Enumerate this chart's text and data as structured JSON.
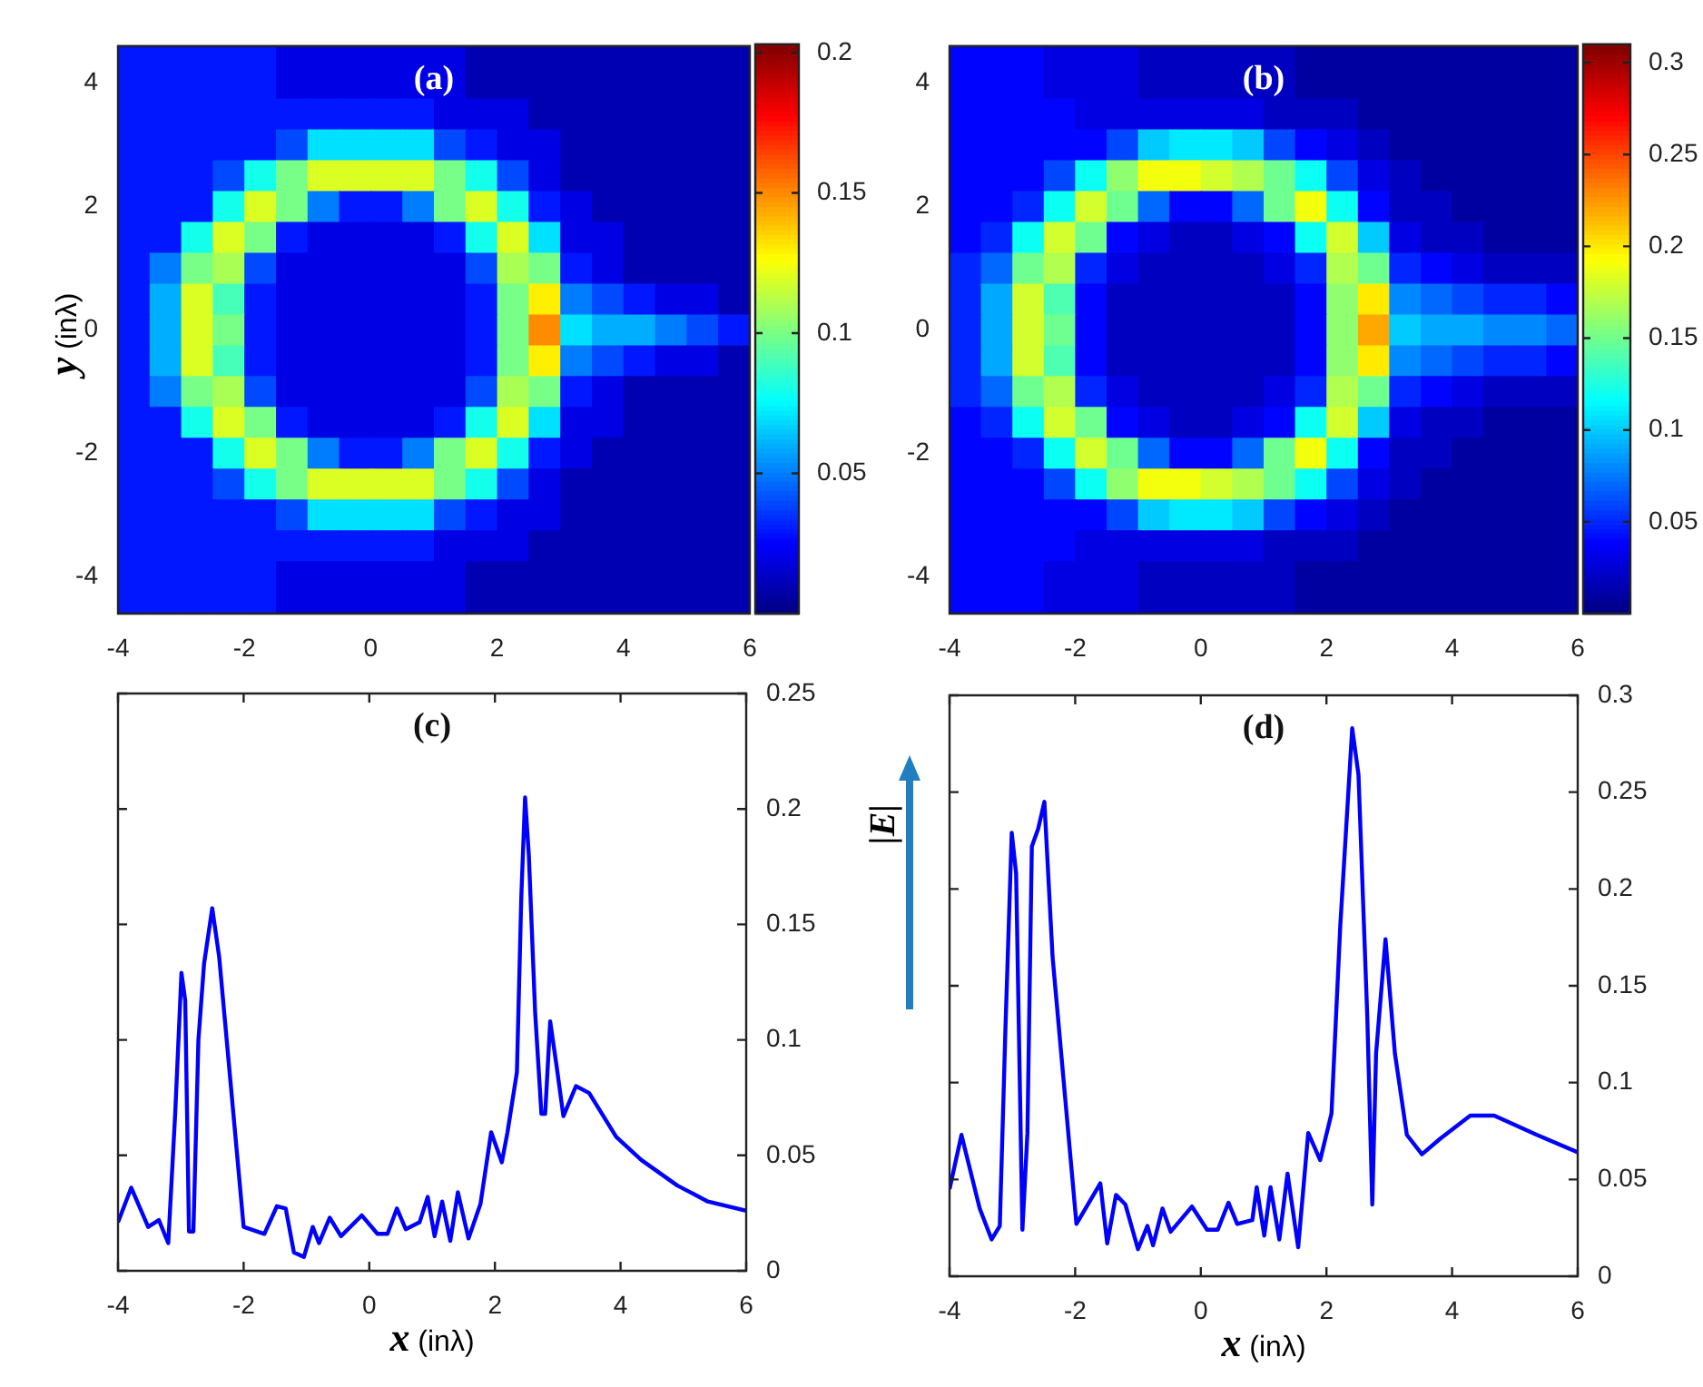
{
  "chart_data": [
    {
      "type": "heatmap",
      "title": "(a)",
      "ylabel": "y (inλ)",
      "xlim": [
        -4,
        6
      ],
      "ylim": [
        -4.6,
        4.6
      ],
      "xticks": [
        -4,
        -2,
        0,
        2,
        4,
        6
      ],
      "yticks": [
        -4,
        -2,
        0,
        2,
        4
      ],
      "clim": [
        0,
        0.203
      ],
      "cticks": [
        0.05,
        0.1,
        0.15,
        0.2
      ],
      "x": [
        -3.75,
        -3.25,
        -2.75,
        -2.25,
        -1.75,
        -1.25,
        -0.75,
        -0.25,
        0.25,
        0.75,
        1.25,
        1.75,
        2.25,
        2.75,
        3.25,
        3.75,
        4.25,
        4.75,
        5.25,
        5.75
      ],
      "y": [
        4.5,
        4,
        3.5,
        3,
        2.5,
        2,
        1.5,
        1,
        0.5,
        0,
        -0.5,
        -1,
        -1.5,
        -2,
        -2.5,
        -3,
        -3.5,
        -4,
        -4.5
      ],
      "cells": [
        [
          0.03,
          0.03,
          0.03,
          0.03,
          0.03,
          0.02,
          0.02,
          0.02,
          0.02,
          0.02,
          0.02,
          0.01,
          0.01,
          0.01,
          0.01,
          0.01,
          0.01,
          0.01,
          0.01,
          0.01
        ],
        [
          0.03,
          0.03,
          0.03,
          0.03,
          0.03,
          0.02,
          0.02,
          0.02,
          0.02,
          0.02,
          0.02,
          0.01,
          0.01,
          0.01,
          0.01,
          0.01,
          0.01,
          0.01,
          0.01,
          0.01
        ],
        [
          0.03,
          0.03,
          0.03,
          0.03,
          0.03,
          0.03,
          0.03,
          0.03,
          0.03,
          0.03,
          0.02,
          0.02,
          0.02,
          0.01,
          0.01,
          0.01,
          0.01,
          0.01,
          0.01,
          0.01
        ],
        [
          0.03,
          0.03,
          0.03,
          0.03,
          0.03,
          0.04,
          0.07,
          0.07,
          0.07,
          0.07,
          0.04,
          0.03,
          0.02,
          0.02,
          0.01,
          0.01,
          0.01,
          0.01,
          0.01,
          0.01
        ],
        [
          0.03,
          0.03,
          0.03,
          0.04,
          0.08,
          0.1,
          0.12,
          0.12,
          0.12,
          0.12,
          0.1,
          0.08,
          0.04,
          0.02,
          0.01,
          0.01,
          0.01,
          0.01,
          0.01,
          0.01
        ],
        [
          0.03,
          0.03,
          0.03,
          0.08,
          0.12,
          0.1,
          0.05,
          0.03,
          0.03,
          0.05,
          0.1,
          0.12,
          0.08,
          0.03,
          0.02,
          0.01,
          0.01,
          0.01,
          0.01,
          0.01
        ],
        [
          0.03,
          0.03,
          0.08,
          0.12,
          0.1,
          0.03,
          0.02,
          0.02,
          0.02,
          0.02,
          0.03,
          0.08,
          0.12,
          0.07,
          0.02,
          0.02,
          0.01,
          0.01,
          0.01,
          0.01
        ],
        [
          0.03,
          0.05,
          0.1,
          0.11,
          0.04,
          0.02,
          0.02,
          0.02,
          0.02,
          0.02,
          0.02,
          0.04,
          0.11,
          0.1,
          0.03,
          0.02,
          0.01,
          0.01,
          0.01,
          0.01
        ],
        [
          0.03,
          0.06,
          0.12,
          0.09,
          0.03,
          0.02,
          0.02,
          0.02,
          0.02,
          0.02,
          0.02,
          0.03,
          0.1,
          0.13,
          0.05,
          0.04,
          0.03,
          0.02,
          0.02,
          0.01
        ],
        [
          0.03,
          0.06,
          0.12,
          0.1,
          0.03,
          0.02,
          0.02,
          0.02,
          0.02,
          0.02,
          0.02,
          0.03,
          0.1,
          0.15,
          0.07,
          0.06,
          0.06,
          0.05,
          0.04,
          0.03
        ],
        [
          0.03,
          0.06,
          0.12,
          0.09,
          0.03,
          0.02,
          0.02,
          0.02,
          0.02,
          0.02,
          0.02,
          0.03,
          0.1,
          0.13,
          0.05,
          0.04,
          0.03,
          0.02,
          0.02,
          0.01
        ],
        [
          0.03,
          0.05,
          0.1,
          0.11,
          0.04,
          0.02,
          0.02,
          0.02,
          0.02,
          0.02,
          0.02,
          0.04,
          0.11,
          0.1,
          0.03,
          0.02,
          0.01,
          0.01,
          0.01,
          0.01
        ],
        [
          0.03,
          0.03,
          0.08,
          0.12,
          0.1,
          0.03,
          0.02,
          0.02,
          0.02,
          0.02,
          0.03,
          0.08,
          0.12,
          0.07,
          0.02,
          0.02,
          0.01,
          0.01,
          0.01,
          0.01
        ],
        [
          0.03,
          0.03,
          0.03,
          0.08,
          0.12,
          0.1,
          0.05,
          0.03,
          0.03,
          0.05,
          0.1,
          0.12,
          0.08,
          0.03,
          0.02,
          0.01,
          0.01,
          0.01,
          0.01,
          0.01
        ],
        [
          0.03,
          0.03,
          0.03,
          0.04,
          0.08,
          0.1,
          0.12,
          0.12,
          0.12,
          0.12,
          0.1,
          0.08,
          0.04,
          0.02,
          0.01,
          0.01,
          0.01,
          0.01,
          0.01,
          0.01
        ],
        [
          0.03,
          0.03,
          0.03,
          0.03,
          0.03,
          0.04,
          0.07,
          0.07,
          0.07,
          0.07,
          0.04,
          0.03,
          0.02,
          0.02,
          0.01,
          0.01,
          0.01,
          0.01,
          0.01,
          0.01
        ],
        [
          0.03,
          0.03,
          0.03,
          0.03,
          0.03,
          0.03,
          0.03,
          0.03,
          0.03,
          0.03,
          0.02,
          0.02,
          0.02,
          0.01,
          0.01,
          0.01,
          0.01,
          0.01,
          0.01,
          0.01
        ],
        [
          0.03,
          0.03,
          0.03,
          0.03,
          0.03,
          0.02,
          0.02,
          0.02,
          0.02,
          0.02,
          0.02,
          0.01,
          0.01,
          0.01,
          0.01,
          0.01,
          0.01,
          0.01,
          0.01,
          0.01
        ],
        [
          0.03,
          0.03,
          0.03,
          0.03,
          0.03,
          0.02,
          0.02,
          0.02,
          0.02,
          0.02,
          0.02,
          0.01,
          0.01,
          0.01,
          0.01,
          0.01,
          0.01,
          0.01,
          0.01,
          0.01
        ]
      ]
    },
    {
      "type": "heatmap",
      "title": "(b)",
      "xlim": [
        -4,
        6
      ],
      "ylim": [
        -4.6,
        4.6
      ],
      "xticks": [
        -4,
        -2,
        0,
        2,
        4,
        6
      ],
      "yticks": [
        -4,
        -2,
        0,
        2,
        4
      ],
      "clim": [
        0,
        0.31
      ],
      "cticks": [
        0.05,
        0.1,
        0.15,
        0.2,
        0.25,
        0.3
      ],
      "x": [
        -3.75,
        -3.25,
        -2.75,
        -2.25,
        -1.75,
        -1.25,
        -0.75,
        -0.25,
        0.25,
        0.75,
        1.25,
        1.75,
        2.25,
        2.75,
        3.25,
        3.75,
        4.25,
        4.75,
        5.25,
        5.75
      ],
      "y": [
        4.5,
        4,
        3.5,
        3,
        2.5,
        2,
        1.5,
        1,
        0.5,
        0,
        -0.5,
        -1,
        -1.5,
        -2,
        -2.5,
        -3,
        -3.5,
        -4,
        -4.5
      ],
      "cells": [
        [
          0.04,
          0.04,
          0.04,
          0.03,
          0.03,
          0.03,
          0.02,
          0.02,
          0.02,
          0.02,
          0.02,
          0.01,
          0.01,
          0.01,
          0.01,
          0.01,
          0.01,
          0.01,
          0.01,
          0.01
        ],
        [
          0.04,
          0.04,
          0.04,
          0.03,
          0.03,
          0.03,
          0.02,
          0.02,
          0.02,
          0.02,
          0.02,
          0.01,
          0.01,
          0.01,
          0.01,
          0.01,
          0.01,
          0.01,
          0.01,
          0.01
        ],
        [
          0.04,
          0.04,
          0.04,
          0.04,
          0.03,
          0.03,
          0.03,
          0.03,
          0.03,
          0.03,
          0.02,
          0.02,
          0.02,
          0.01,
          0.01,
          0.01,
          0.01,
          0.01,
          0.01,
          0.01
        ],
        [
          0.04,
          0.04,
          0.04,
          0.04,
          0.04,
          0.06,
          0.1,
          0.11,
          0.11,
          0.1,
          0.06,
          0.04,
          0.03,
          0.02,
          0.01,
          0.01,
          0.01,
          0.01,
          0.01,
          0.01
        ],
        [
          0.04,
          0.04,
          0.04,
          0.06,
          0.12,
          0.16,
          0.19,
          0.19,
          0.18,
          0.17,
          0.15,
          0.12,
          0.06,
          0.03,
          0.02,
          0.01,
          0.01,
          0.01,
          0.01,
          0.01
        ],
        [
          0.04,
          0.04,
          0.05,
          0.12,
          0.18,
          0.15,
          0.07,
          0.04,
          0.04,
          0.07,
          0.15,
          0.19,
          0.12,
          0.04,
          0.02,
          0.02,
          0.01,
          0.01,
          0.01,
          0.01
        ],
        [
          0.04,
          0.05,
          0.12,
          0.18,
          0.15,
          0.04,
          0.03,
          0.02,
          0.02,
          0.03,
          0.04,
          0.12,
          0.18,
          0.1,
          0.03,
          0.02,
          0.02,
          0.01,
          0.01,
          0.01
        ],
        [
          0.05,
          0.07,
          0.15,
          0.17,
          0.05,
          0.03,
          0.02,
          0.02,
          0.02,
          0.02,
          0.03,
          0.05,
          0.17,
          0.15,
          0.05,
          0.04,
          0.03,
          0.02,
          0.02,
          0.02
        ],
        [
          0.05,
          0.09,
          0.18,
          0.14,
          0.04,
          0.02,
          0.02,
          0.02,
          0.02,
          0.02,
          0.02,
          0.04,
          0.16,
          0.2,
          0.08,
          0.07,
          0.06,
          0.05,
          0.05,
          0.04
        ],
        [
          0.05,
          0.09,
          0.18,
          0.15,
          0.04,
          0.02,
          0.02,
          0.02,
          0.02,
          0.02,
          0.02,
          0.04,
          0.16,
          0.22,
          0.1,
          0.09,
          0.09,
          0.08,
          0.08,
          0.07
        ],
        [
          0.05,
          0.09,
          0.18,
          0.14,
          0.04,
          0.02,
          0.02,
          0.02,
          0.02,
          0.02,
          0.02,
          0.04,
          0.16,
          0.2,
          0.08,
          0.07,
          0.06,
          0.05,
          0.05,
          0.04
        ],
        [
          0.05,
          0.07,
          0.15,
          0.17,
          0.05,
          0.03,
          0.02,
          0.02,
          0.02,
          0.02,
          0.03,
          0.05,
          0.17,
          0.15,
          0.05,
          0.04,
          0.03,
          0.02,
          0.02,
          0.02
        ],
        [
          0.04,
          0.05,
          0.12,
          0.18,
          0.15,
          0.04,
          0.03,
          0.02,
          0.02,
          0.03,
          0.04,
          0.12,
          0.18,
          0.1,
          0.03,
          0.02,
          0.02,
          0.01,
          0.01,
          0.01
        ],
        [
          0.04,
          0.04,
          0.05,
          0.12,
          0.18,
          0.15,
          0.07,
          0.04,
          0.04,
          0.07,
          0.15,
          0.19,
          0.12,
          0.04,
          0.02,
          0.02,
          0.01,
          0.01,
          0.01,
          0.01
        ],
        [
          0.04,
          0.04,
          0.04,
          0.06,
          0.12,
          0.16,
          0.19,
          0.19,
          0.18,
          0.17,
          0.15,
          0.12,
          0.06,
          0.03,
          0.02,
          0.01,
          0.01,
          0.01,
          0.01,
          0.01
        ],
        [
          0.04,
          0.04,
          0.04,
          0.04,
          0.04,
          0.06,
          0.1,
          0.11,
          0.11,
          0.1,
          0.06,
          0.04,
          0.03,
          0.02,
          0.01,
          0.01,
          0.01,
          0.01,
          0.01,
          0.01
        ],
        [
          0.04,
          0.04,
          0.04,
          0.04,
          0.03,
          0.03,
          0.03,
          0.03,
          0.03,
          0.03,
          0.02,
          0.02,
          0.02,
          0.01,
          0.01,
          0.01,
          0.01,
          0.01,
          0.01,
          0.01
        ],
        [
          0.04,
          0.04,
          0.04,
          0.03,
          0.03,
          0.03,
          0.02,
          0.02,
          0.02,
          0.02,
          0.02,
          0.01,
          0.01,
          0.01,
          0.01,
          0.01,
          0.01,
          0.01,
          0.01,
          0.01
        ],
        [
          0.04,
          0.04,
          0.04,
          0.03,
          0.03,
          0.03,
          0.02,
          0.02,
          0.02,
          0.02,
          0.02,
          0.01,
          0.01,
          0.01,
          0.01,
          0.01,
          0.01,
          0.01,
          0.01,
          0.01
        ]
      ]
    },
    {
      "type": "line",
      "title": "(c)",
      "xlabel": "x (inλ)",
      "color": "#0000ff",
      "xlim": [
        -4,
        6
      ],
      "ylim": [
        0,
        0.25
      ],
      "xticks": [
        -4,
        -2,
        0,
        2,
        4,
        6
      ],
      "yticks": [
        0,
        0.05,
        0.1,
        0.15,
        0.2,
        0.25
      ],
      "x": [
        -4,
        -3.79,
        -3.52,
        -3.35,
        -3.2,
        -3.09,
        -2.99,
        -2.93,
        -2.87,
        -2.8,
        -2.72,
        -2.63,
        -2.5,
        -2.39,
        -2,
        -1.67,
        -1.47,
        -1.33,
        -1.2,
        -1.04,
        -0.9,
        -0.8,
        -0.63,
        -0.45,
        -0.12,
        0.13,
        0.29,
        0.44,
        0.58,
        0.8,
        0.93,
        1.04,
        1.16,
        1.29,
        1.41,
        1.58,
        1.77,
        1.94,
        2.11,
        2.2,
        2.35,
        2.42,
        2.48,
        2.54,
        2.64,
        2.74,
        2.8,
        2.88,
        2.98,
        3.09,
        3.29,
        3.5,
        3.93,
        4.33,
        4.9,
        5.39,
        6
      ],
      "values": [
        0.021,
        0.036,
        0.019,
        0.022,
        0.012,
        0.068,
        0.129,
        0.117,
        0.017,
        0.017,
        0.1,
        0.133,
        0.157,
        0.136,
        0.019,
        0.016,
        0.028,
        0.027,
        0.008,
        0.006,
        0.019,
        0.012,
        0.023,
        0.015,
        0.024,
        0.016,
        0.016,
        0.027,
        0.018,
        0.021,
        0.032,
        0.015,
        0.03,
        0.013,
        0.034,
        0.014,
        0.029,
        0.06,
        0.047,
        0.06,
        0.086,
        0.162,
        0.205,
        0.18,
        0.112,
        0.068,
        0.068,
        0.108,
        0.089,
        0.067,
        0.08,
        0.077,
        0.058,
        0.048,
        0.037,
        0.03,
        0.026
      ]
    },
    {
      "type": "line",
      "title": "(d)",
      "xlabel": "x (inλ)",
      "ylabel": "|E|",
      "color": "#0000ff",
      "xlim": [
        -4,
        6
      ],
      "ylim": [
        0,
        0.3
      ],
      "xticks": [
        -4,
        -2,
        0,
        2,
        4,
        6
      ],
      "yticks": [
        0,
        0.05,
        0.1,
        0.15,
        0.2,
        0.25,
        0.3
      ],
      "x": [
        -4,
        -3.81,
        -3.52,
        -3.33,
        -3.2,
        -3.11,
        -3.01,
        -2.94,
        -2.84,
        -2.76,
        -2.69,
        -2.59,
        -2.49,
        -2.36,
        -1.98,
        -1.6,
        -1.49,
        -1.35,
        -1.2,
        -1,
        -0.85,
        -0.76,
        -0.61,
        -0.48,
        -0.14,
        0.1,
        0.27,
        0.44,
        0.58,
        0.82,
        0.89,
        1.01,
        1.11,
        1.25,
        1.38,
        1.55,
        1.71,
        1.9,
        2.08,
        2.22,
        2.41,
        2.51,
        2.65,
        2.73,
        2.79,
        2.94,
        3.09,
        3.28,
        3.52,
        3.81,
        4.29,
        4.67,
        5.35,
        6
      ],
      "values": [
        0.045,
        0.073,
        0.035,
        0.019,
        0.026,
        0.128,
        0.229,
        0.208,
        0.024,
        0.074,
        0.222,
        0.231,
        0.245,
        0.165,
        0.027,
        0.048,
        0.017,
        0.042,
        0.037,
        0.014,
        0.026,
        0.016,
        0.035,
        0.023,
        0.036,
        0.024,
        0.024,
        0.038,
        0.027,
        0.029,
        0.046,
        0.021,
        0.046,
        0.019,
        0.053,
        0.015,
        0.074,
        0.06,
        0.084,
        0.181,
        0.283,
        0.259,
        0.134,
        0.037,
        0.115,
        0.174,
        0.115,
        0.073,
        0.063,
        0.071,
        0.083,
        0.083,
        0.073,
        0.064
      ]
    }
  ]
}
